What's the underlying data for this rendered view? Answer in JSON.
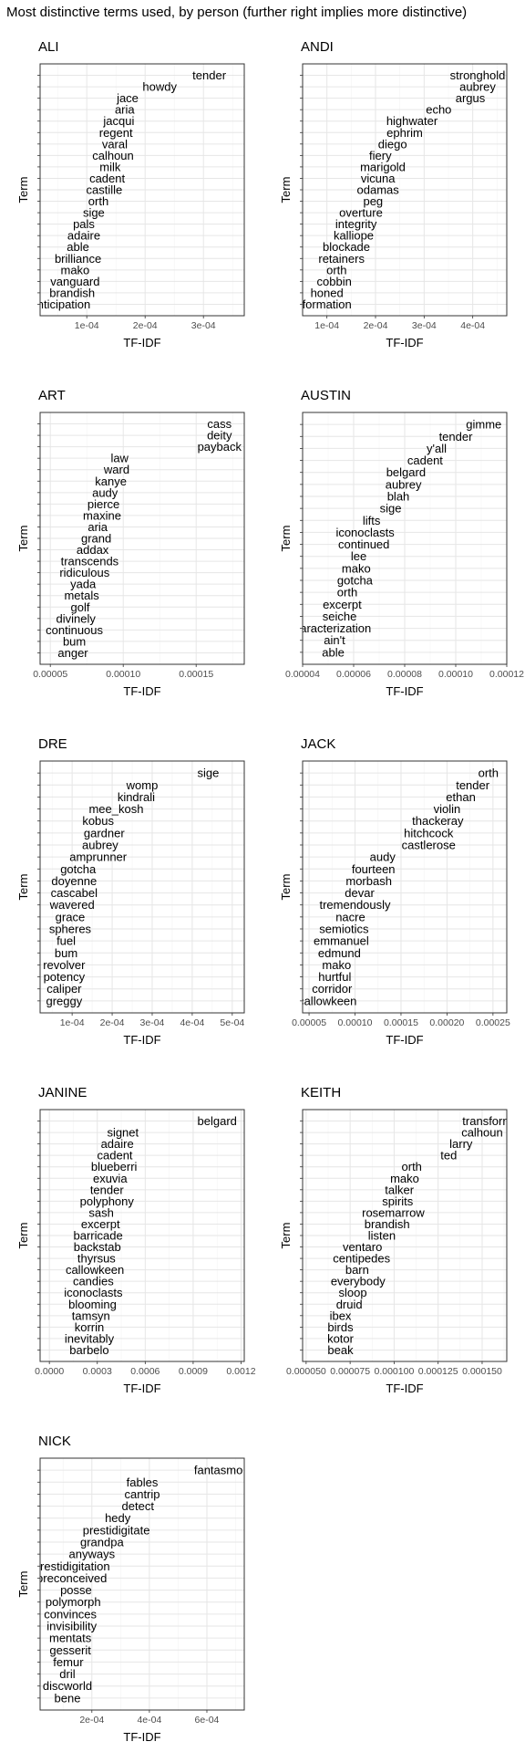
{
  "chart_data": {
    "type": "text-scatter",
    "title": "Most distinctive terms used, by person (further right implies more distinctive)",
    "xlabel": "TF-IDF",
    "ylabel": "Term",
    "panels": [
      {
        "name": "ALI",
        "xlim": [
          2e-05,
          0.00037
        ],
        "xticks": [
          0.0001,
          0.0002,
          0.0003
        ],
        "xtick_labels": [
          "1e-04",
          "2e-04",
          "3e-04"
        ],
        "terms": [
          "tender",
          "howdy",
          "jace",
          "aria",
          "jacqui",
          "regent",
          "varal",
          "calhoun",
          "milk",
          "cadent",
          "castille",
          "orth",
          "sige",
          "pals",
          "adaire",
          "able",
          "brilliance",
          "mako",
          "vanguard",
          "brandish",
          "anticipation"
        ],
        "values": [
          0.00031,
          0.000225,
          0.00017,
          0.000165,
          0.000155,
          0.00015,
          0.000148,
          0.000145,
          0.00014,
          0.000135,
          0.00013,
          0.00012,
          0.000112,
          9.5e-05,
          9.5e-05,
          8.5e-05,
          8.5e-05,
          8e-05,
          8e-05,
          7.5e-05,
          5.5e-05
        ]
      },
      {
        "name": "ANDI",
        "xlim": [
          5e-05,
          0.00047
        ],
        "xticks": [
          0.0001,
          0.0002,
          0.0003,
          0.0004
        ],
        "xtick_labels": [
          "1e-04",
          "2e-04",
          "3e-04",
          "4e-04"
        ],
        "terms": [
          "stronghold",
          "aubrey",
          "argus",
          "echo",
          "highwater",
          "ephrim",
          "diego",
          "fiery",
          "marigold",
          "vicuna",
          "odamas",
          "peg",
          "overture",
          "integrity",
          "kalliope",
          "blockade",
          "retainers",
          "orth",
          "cobbin",
          "honed",
          "formation"
        ],
        "values": [
          0.00041,
          0.00041,
          0.000395,
          0.00033,
          0.000275,
          0.00026,
          0.000235,
          0.00021,
          0.000215,
          0.000205,
          0.000205,
          0.000195,
          0.00017,
          0.00016,
          0.000155,
          0.00014,
          0.00013,
          0.00012,
          0.000115,
          0.0001,
          0.0001
        ]
      },
      {
        "name": "ART",
        "xlim": [
          4.3e-05,
          0.000183
        ],
        "xticks": [
          5e-05,
          0.0001,
          0.00015
        ],
        "xtick_labels": [
          "0.00005",
          "0.00010",
          "0.00015"
        ],
        "terms": [
          "cass",
          "deity",
          "payback",
          "law",
          "ward",
          "kanye",
          "audy",
          "pierce",
          "maxine",
          "aria",
          "grand",
          "addax",
          "transcends",
          "ridiculous",
          "yada",
          "metals",
          "golf",
          "divinely",
          "continuous",
          "bum",
          "anger"
        ],
        "values": [
          0.000166,
          0.000166,
          0.000166,
          9.75e-05,
          9.55e-05,
          9.15e-05,
          8.75e-05,
          8.65e-05,
          8.55e-05,
          8.25e-05,
          8.15e-05,
          7.9e-05,
          7.7e-05,
          7.35e-05,
          7.25e-05,
          7.15e-05,
          7.05e-05,
          6.75e-05,
          6.65e-05,
          6.65e-05,
          6.55e-05
        ]
      },
      {
        "name": "AUSTIN",
        "xlim": [
          4e-05,
          0.00012
        ],
        "xticks": [
          4e-05,
          6e-05,
          8e-05,
          0.0001,
          0.00012
        ],
        "xtick_labels": [
          "0.00004",
          "0.00006",
          "0.00008",
          "0.00010",
          "0.00012"
        ],
        "terms": [
          "gimme",
          "tender",
          "y'all",
          "cadent",
          "belgard",
          "aubrey",
          "blah",
          "sige",
          "lifts",
          "iconoclasts",
          "continued",
          "lee",
          "mako",
          "gotcha",
          "orth",
          "excerpt",
          "seiche",
          "characterization",
          "ain't",
          "able"
        ],
        "values": [
          0.000111,
          0.0001,
          9.25e-05,
          8.8e-05,
          8.05e-05,
          7.95e-05,
          7.75e-05,
          7.45e-05,
          6.7e-05,
          6.45e-05,
          6.4e-05,
          6.2e-05,
          6.1e-05,
          6.05e-05,
          5.75e-05,
          5.55e-05,
          5.45e-05,
          5.05e-05,
          5.25e-05,
          5.2e-05
        ]
      },
      {
        "name": "DRE",
        "xlim": [
          2e-05,
          0.00053
        ],
        "xticks": [
          0.0001,
          0.0002,
          0.0003,
          0.0004,
          0.0005
        ],
        "xtick_labels": [
          "1e-04",
          "2e-04",
          "3e-04",
          "4e-04",
          "5e-04"
        ],
        "terms": [
          "sige",
          "womp",
          "kindrali",
          "mee_kosh",
          "kobus",
          "gardner",
          "aubrey",
          "amprunner",
          "gotcha",
          "doyenne",
          "cascabel",
          "wavered",
          "grace",
          "spheres",
          "fuel",
          "bum",
          "revolver",
          "potency",
          "caliper",
          "greggy"
        ],
        "values": [
          0.00044,
          0.000275,
          0.00026,
          0.00021,
          0.000165,
          0.00018,
          0.00017,
          0.000165,
          0.000115,
          0.000105,
          0.000105,
          0.0001,
          9.5e-05,
          9.5e-05,
          8.5e-05,
          8.5e-05,
          8e-05,
          8e-05,
          8e-05,
          8e-05
        ]
      },
      {
        "name": "JACK",
        "xlim": [
          4.3e-05,
          0.000265
        ],
        "xticks": [
          5e-05,
          0.0001,
          0.00015,
          0.0002,
          0.00025
        ],
        "xtick_labels": [
          "0.00005",
          "0.00010",
          "0.00015",
          "0.00020",
          "0.00025"
        ],
        "terms": [
          "orth",
          "tender",
          "ethan",
          "violin",
          "thackeray",
          "hitchcock",
          "castlerose",
          "audy",
          "fourteen",
          "morbash",
          "devar",
          "tremendously",
          "nacre",
          "semiotics",
          "emmanuel",
          "edmund",
          "mako",
          "hurtful",
          "corridor",
          "callowkeen"
        ],
        "values": [
          0.000245,
          0.000228,
          0.000215,
          0.0002,
          0.00019,
          0.00018,
          0.00018,
          0.00013,
          0.00012,
          0.000115,
          0.000105,
          0.0001,
          9.5e-05,
          8.8e-05,
          8.5e-05,
          8.3e-05,
          8e-05,
          7.8e-05,
          7.5e-05,
          7e-05
        ]
      },
      {
        "name": "JANINE",
        "xlim": [
          -5.8e-05,
          0.00122
        ],
        "xticks": [
          0,
          0.0003,
          0.0006,
          0.0009,
          0.0012
        ],
        "xtick_labels": [
          "0.0000",
          "0.0003",
          "0.0006",
          "0.0009",
          "0.0012"
        ],
        "terms": [
          "belgard",
          "signet",
          "adaire",
          "cadent",
          "blueberri",
          "exuvia",
          "tender",
          "polyphony",
          "sash",
          "excerpt",
          "barricade",
          "backstab",
          "thyrsus",
          "callowkeen",
          "candies",
          "iconoclasts",
          "blooming",
          "tamsyn",
          "korrin",
          "inevitably",
          "barbelo"
        ],
        "values": [
          0.00105,
          0.00046,
          0.000425,
          0.00041,
          0.000405,
          0.00038,
          0.00036,
          0.00036,
          0.000325,
          0.00032,
          0.000305,
          0.0003,
          0.000295,
          0.000285,
          0.000275,
          0.000275,
          0.00027,
          0.00026,
          0.00025,
          0.00025,
          0.00025
        ]
      },
      {
        "name": "KEITH",
        "xlim": [
          4.8e-05,
          0.000164
        ],
        "xticks": [
          5e-05,
          7.5e-05,
          0.0001,
          0.000125,
          0.00015
        ],
        "xtick_labels": [
          "0.000050",
          "0.000075",
          "0.000100",
          "0.000125",
          "0.000150"
        ],
        "terms": [
          "transform",
          "calhoun",
          "larry",
          "ted",
          "orth",
          "mako",
          "talker",
          "spirits",
          "rosemarrow",
          "brandish",
          "listen",
          "ventaro",
          "centipedes",
          "barn",
          "everybody",
          "sloop",
          "druid",
          "ibex",
          "birds",
          "kotor",
          "beak"
        ],
        "values": [
          0.000153,
          0.00015,
          0.000138,
          0.000131,
          0.00011,
          0.000106,
          0.000103,
          0.000102,
          9.95e-05,
          9.6e-05,
          9.3e-05,
          8.2e-05,
          8.15e-05,
          7.9e-05,
          7.95e-05,
          7.65e-05,
          7.45e-05,
          6.95e-05,
          6.95e-05,
          6.95e-05,
          6.95e-05
        ]
      },
      {
        "name": "NICK",
        "xlim": [
          2e-05,
          0.00073
        ],
        "xticks": [
          0.0002,
          0.0004,
          0.0006
        ],
        "xtick_labels": [
          "2e-04",
          "4e-04",
          "6e-04"
        ],
        "terms": [
          "fantasmo",
          "fables",
          "cantrip",
          "detect",
          "hedy",
          "prestidigitate",
          "grandpa",
          "anyways",
          "prestidigitation",
          "preconceived",
          "posse",
          "polymorph",
          "convinces",
          "invisibility",
          "mentats",
          "gesserit",
          "femur",
          "dril",
          "discworld",
          "bene"
        ],
        "values": [
          0.00064,
          0.000375,
          0.000375,
          0.00036,
          0.00029,
          0.000285,
          0.000235,
          0.0002,
          0.00013,
          0.00013,
          0.000145,
          0.000135,
          0.000125,
          0.00013,
          0.000125,
          0.000125,
          0.000118,
          0.000115,
          0.000115,
          0.000115
        ]
      }
    ]
  }
}
